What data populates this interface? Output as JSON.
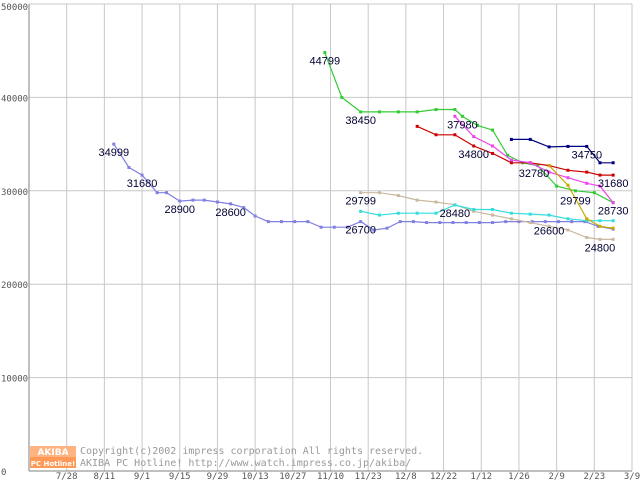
{
  "chart_data": {
    "type": "line",
    "title": "",
    "xlabel": "",
    "ylabel": "",
    "ylim": [
      0,
      50000
    ],
    "yticks": [
      "0",
      "10000",
      "20000",
      "30000",
      "40000",
      "50000"
    ],
    "xticks": [
      "7/28",
      "8/11",
      "9/1",
      "9/15",
      "9/29",
      "10/13",
      "10/27",
      "11/10",
      "11/23",
      "12/8",
      "12/22",
      "1/12",
      "1/26",
      "2/9",
      "2/23",
      "3/9"
    ],
    "grid": true,
    "series": [
      {
        "color": "#8080e0",
        "x": [
          4.5,
          5.3,
          6.0,
          6.8,
          7.3,
          8.0,
          8.7,
          9.3,
          10.0,
          10.7,
          11.4,
          12.0,
          12.7,
          13.4,
          14.1,
          14.8,
          15.5,
          16.2,
          16.9,
          17.6,
          18.3,
          19.0,
          19.7,
          20.4,
          21.1,
          21.8,
          22.5,
          23.2,
          23.9,
          24.6,
          25.3,
          26.0,
          26.7,
          27.4,
          28.1,
          28.8,
          29.5,
          30.2,
          31.0
        ],
        "values": [
          34999,
          32500,
          31680,
          29800,
          29800,
          28900,
          29000,
          29000,
          28800,
          28600,
          28200,
          27300,
          26700,
          26700,
          26700,
          26700,
          26100,
          26100,
          26100,
          26700,
          25800,
          26000,
          26700,
          26700,
          26600,
          26600,
          26600,
          26600,
          26600,
          26600,
          26700,
          26700,
          26700,
          26700,
          26700,
          26700,
          26700,
          26200,
          25900
        ]
      },
      {
        "color": "#33cc33",
        "x": [
          15.7,
          16.6,
          17.6,
          18.6,
          19.6,
          20.6,
          21.6,
          22.6,
          23.0,
          23.8,
          24.6,
          25.4,
          26.2,
          27.0,
          28.0,
          29.0,
          30.0,
          31.0
        ],
        "values": [
          44799,
          40000,
          38450,
          38450,
          38450,
          38450,
          38700,
          38700,
          37980,
          37000,
          36500,
          33800,
          33000,
          32700,
          30500,
          30000,
          29799,
          28730
        ]
      },
      {
        "color": "#c9b9a0",
        "x": [
          17.6,
          18.6,
          19.6,
          20.6,
          21.6,
          22.6,
          23.6,
          24.6,
          25.6,
          26.6,
          27.6,
          28.6,
          29.6,
          30.3,
          31.0
        ],
        "values": [
          29799,
          29800,
          29500,
          29000,
          28800,
          28500,
          27800,
          27400,
          27000,
          26600,
          26200,
          25800,
          25000,
          24800,
          24800
        ]
      },
      {
        "color": "#33dddd",
        "x": [
          17.6,
          18.6,
          19.6,
          20.6,
          21.6,
          22.6,
          23.6,
          24.6,
          25.6,
          26.6,
          27.6,
          28.6,
          29.6,
          30.3,
          31.0
        ],
        "values": [
          27800,
          27400,
          27600,
          27600,
          27600,
          28480,
          28000,
          28000,
          27600,
          27500,
          27400,
          27000,
          26800,
          26800,
          26800
        ]
      },
      {
        "color": "#cc0000",
        "x": [
          20.6,
          21.6,
          22.6,
          23.6,
          24.6,
          25.6,
          26.6,
          27.6,
          28.6,
          29.6,
          30.3,
          31.0
        ],
        "values": [
          36900,
          36000,
          36000,
          34800,
          34000,
          33000,
          33000,
          32700,
          32200,
          32000,
          31680,
          31680
        ]
      },
      {
        "color": "#ee44ee",
        "x": [
          22.6,
          23.6,
          24.6,
          25.6,
          26.6,
          27.6,
          28.6,
          29.6,
          30.3,
          31.0
        ],
        "values": [
          37980,
          35800,
          34800,
          33300,
          33000,
          32000,
          31400,
          30800,
          30500,
          28730
        ]
      },
      {
        "color": "#000080",
        "x": [
          25.6,
          26.6,
          27.6,
          28.6,
          29.6,
          30.3,
          31.0
        ],
        "values": [
          35500,
          35500,
          34700,
          34750,
          34750,
          33000,
          33000
        ]
      },
      {
        "color": "#c8aa00",
        "x": [
          27.6,
          28.6,
          29.6,
          30.3,
          31.0
        ],
        "values": [
          32700,
          30600,
          27000,
          26200,
          26000
        ]
      }
    ],
    "annotations": [
      {
        "text": "34999",
        "x": 4.5,
        "y": 34999
      },
      {
        "text": "31680",
        "x": 6.0,
        "y": 31680
      },
      {
        "text": "28900",
        "x": 8.0,
        "y": 28900
      },
      {
        "text": "28600",
        "x": 10.7,
        "y": 28600
      },
      {
        "text": "44799",
        "x": 15.7,
        "y": 44799
      },
      {
        "text": "38450",
        "x": 17.6,
        "y": 38450
      },
      {
        "text": "29799",
        "x": 17.6,
        "y": 29799
      },
      {
        "text": "26700",
        "x": 17.6,
        "y": 26700
      },
      {
        "text": "37980",
        "x": 23.0,
        "y": 37980
      },
      {
        "text": "34800",
        "x": 23.6,
        "y": 34800
      },
      {
        "text": "28480",
        "x": 22.6,
        "y": 28480
      },
      {
        "text": "32780",
        "x": 26.8,
        "y": 32780
      },
      {
        "text": "26600",
        "x": 27.6,
        "y": 26600
      },
      {
        "text": "34750",
        "x": 29.6,
        "y": 34750
      },
      {
        "text": "29799",
        "x": 29.0,
        "y": 29799
      },
      {
        "text": "31680",
        "x": 31.0,
        "y": 31680
      },
      {
        "text": "28730",
        "x": 31.0,
        "y": 28730
      },
      {
        "text": "24800",
        "x": 30.3,
        "y": 24800
      }
    ]
  },
  "watermark": {
    "logo_top": "AKIBA",
    "logo_bottom": "PC Hotline!",
    "line1": "Copyright(c)2002 impress corporation All rights reserved.",
    "line2": "AKIBA PC Hotline!  http://www.watch.impress.co.jp/akiba/"
  }
}
